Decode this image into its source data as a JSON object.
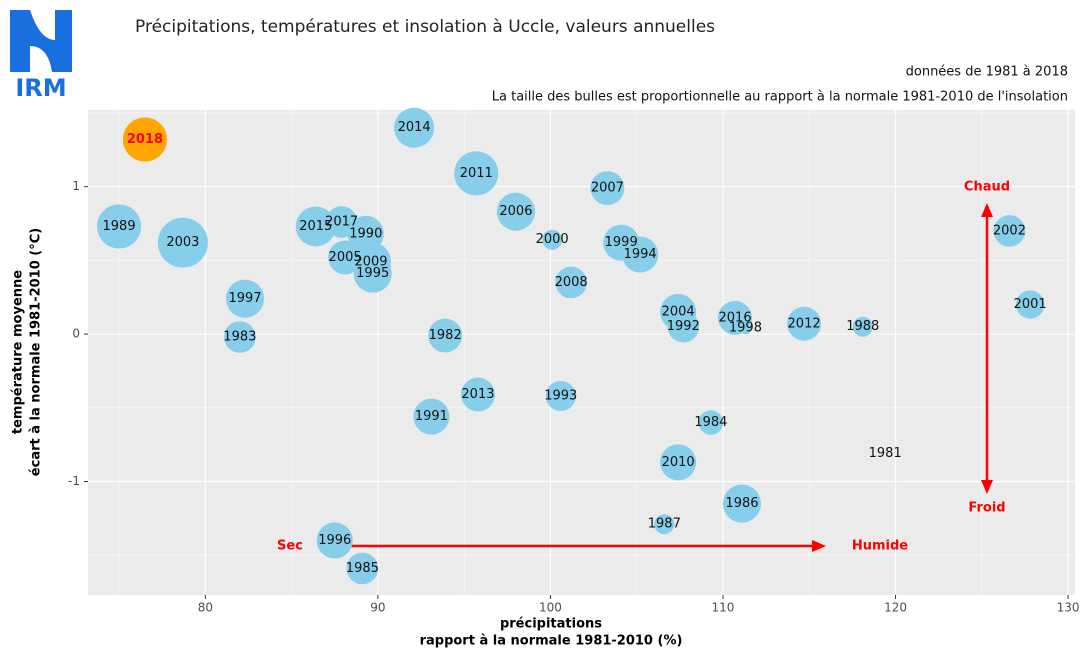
{
  "logo": "IRM",
  "chart_data": {
    "type": "bubble",
    "title": "Précipitations, températures et insolation à Uccle, valeurs annuelles",
    "subtitle": "données de 1981 à 2018",
    "caption": "La taille des bulles est proportionnelle au rapport à la normale 1981-2010 de l'insolation",
    "x_label": [
      "précipitations",
      "rapport à la normale 1981-2010 (%)"
    ],
    "y_label": [
      "température moyenne",
      "écart à la normale 1981-2010 (°C)"
    ],
    "labels": [
      "2018",
      "1989",
      "2003",
      "1997",
      "1983",
      "2015",
      "2017",
      "1990",
      "2005",
      "2009",
      "1995",
      "2014",
      "1982",
      "1991",
      "2013",
      "2011",
      "2006",
      "2000",
      "2008",
      "1993",
      "2007",
      "1999",
      "1994",
      "2004",
      "1992",
      "2010",
      "1987",
      "1984",
      "2016",
      "1998",
      "1986",
      "2012",
      "1988",
      "1981",
      "2002",
      "2001",
      "1996",
      "1985"
    ],
    "x": [
      76.5,
      75.0,
      78.7,
      82.3,
      82.0,
      86.4,
      87.9,
      89.3,
      88.1,
      89.6,
      89.7,
      92.1,
      93.9,
      93.1,
      95.8,
      95.7,
      98.0,
      100.1,
      101.2,
      100.6,
      103.3,
      104.1,
      105.2,
      107.4,
      107.7,
      107.4,
      106.6,
      109.3,
      110.7,
      111.3,
      111.1,
      114.7,
      118.1,
      119.4,
      126.6,
      127.8,
      87.5,
      89.1
    ],
    "values": [
      1.32,
      0.73,
      0.62,
      0.24,
      -0.02,
      0.73,
      0.76,
      0.68,
      0.52,
      0.49,
      0.41,
      1.4,
      -0.01,
      -0.56,
      -0.41,
      1.09,
      0.83,
      0.64,
      0.35,
      -0.42,
      0.99,
      0.62,
      0.54,
      0.15,
      0.05,
      -0.87,
      -1.29,
      -0.6,
      0.11,
      0.04,
      -1.15,
      0.07,
      0.05,
      -0.81,
      0.7,
      0.2,
      -1.4,
      -1.59
    ],
    "sizes": [
      119,
      119,
      130,
      109,
      100,
      112,
      100,
      106,
      103,
      112,
      109,
      112,
      103,
      106,
      103,
      119,
      109,
      88,
      100,
      98,
      103,
      106,
      106,
      106,
      100,
      106,
      88,
      92,
      103,
      83,
      109,
      103,
      88,
      80,
      100,
      96,
      106,
      100
    ],
    "color": "#87ceeb",
    "highlight": {
      "index": 0,
      "color": "#ffa500",
      "label_color": "#ff0000"
    },
    "xlim": [
      73.2,
      130.4
    ],
    "xticks": [
      80,
      90,
      100,
      110,
      120,
      130
    ],
    "ylim": [
      -1.77,
      1.52
    ],
    "yticks": [
      -1,
      0,
      1
    ],
    "grid": true,
    "annotations": {
      "up": "Chaud",
      "down": "Froid",
      "left": "Sec",
      "right": "Humide",
      "color": "#ff0000"
    }
  }
}
